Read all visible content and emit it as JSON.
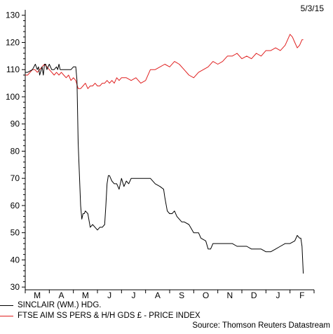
{
  "date_stamp": "5/3/15",
  "source": "Source: Thomson Reuters Datastream",
  "legend": [
    {
      "label": "SINCLAIR (WM.) HDG.",
      "color": "#000000"
    },
    {
      "label": "FTSE AIM SS PERS & H/H GDS £ - PRICE INDEX",
      "color": "#e02020"
    }
  ],
  "chart_data": {
    "type": "line",
    "title": "",
    "xlabel": "",
    "ylabel": "",
    "grid": false,
    "legend_position": "bottom-left",
    "x_ticks": [
      "M",
      "A",
      "M",
      "J",
      "J",
      "A",
      "S",
      "O",
      "N",
      "D",
      "J",
      "F"
    ],
    "y_ticks": [
      30,
      40,
      50,
      60,
      70,
      80,
      90,
      100,
      110,
      120,
      130
    ],
    "xlim": [
      0,
      12
    ],
    "ylim": [
      29,
      132
    ],
    "series": [
      {
        "name": "SINCLAIR (WM.) HDG.",
        "color": "#000000",
        "x": [
          0,
          0.1,
          0.3,
          0.42,
          0.5,
          0.55,
          0.6,
          0.7,
          0.75,
          0.8,
          0.85,
          0.9,
          1.0,
          1.1,
          1.2,
          1.3,
          1.35,
          1.4,
          1.45,
          1.5,
          1.55,
          1.6,
          1.8,
          1.9,
          2.0,
          2.05,
          2.1,
          2.15,
          2.2,
          2.3,
          2.35,
          2.4,
          2.45,
          2.5,
          2.6,
          2.7,
          2.8,
          2.9,
          3.0,
          3.1,
          3.2,
          3.3,
          3.35,
          3.4,
          3.45,
          3.5,
          3.55,
          3.6,
          3.7,
          3.8,
          3.9,
          4.0,
          4.1,
          4.2,
          4.3,
          4.4,
          4.5,
          4.6,
          4.8,
          5.0,
          5.2,
          5.4,
          5.6,
          5.75,
          5.8,
          5.9,
          6.0,
          6.1,
          6.2,
          6.3,
          6.4,
          6.5,
          6.6,
          6.8,
          7.0,
          7.2,
          7.3,
          7.5,
          7.6,
          7.7,
          7.8,
          8.0,
          8.2,
          8.4,
          8.6,
          8.8,
          9.0,
          9.2,
          9.4,
          9.6,
          9.8,
          10.0,
          10.2,
          10.4,
          10.6,
          10.8,
          11.0,
          11.2,
          11.3,
          11.4,
          11.45,
          11.5,
          11.55
        ],
        "values": [
          109,
          109,
          110,
          112,
          110,
          111,
          108,
          111,
          108,
          112,
          112,
          110,
          112,
          110,
          110,
          111,
          110,
          112,
          110,
          110,
          110,
          110,
          110,
          110,
          111,
          111,
          111,
          106,
          83,
          60,
          55,
          57,
          57,
          58,
          57,
          52,
          53,
          52,
          51,
          52,
          52,
          53,
          60,
          68,
          71,
          71,
          70,
          69,
          68,
          68,
          66,
          70,
          67,
          69,
          68,
          70,
          70,
          70,
          70,
          70,
          70,
          68,
          67,
          66,
          63,
          58,
          57,
          57,
          58,
          56,
          55,
          54,
          54,
          53,
          50,
          50,
          48,
          47,
          44,
          44,
          46,
          46,
          46,
          46,
          46,
          45,
          45,
          45,
          44,
          44,
          44,
          43,
          43,
          44,
          45,
          46,
          46,
          47,
          49,
          48,
          48,
          45,
          35
        ]
      },
      {
        "name": "FTSE AIM SS PERS & H/H GDS £ - PRICE INDEX",
        "color": "#e02020",
        "x": [
          0,
          0.1,
          0.2,
          0.3,
          0.4,
          0.5,
          0.6,
          0.7,
          0.8,
          0.9,
          1.0,
          1.1,
          1.2,
          1.3,
          1.4,
          1.5,
          1.6,
          1.7,
          1.8,
          1.9,
          2.0,
          2.1,
          2.2,
          2.3,
          2.4,
          2.5,
          2.6,
          2.7,
          2.8,
          2.9,
          3.0,
          3.1,
          3.2,
          3.3,
          3.4,
          3.5,
          3.6,
          3.7,
          3.8,
          3.9,
          4.0,
          4.2,
          4.4,
          4.6,
          4.8,
          5.0,
          5.2,
          5.4,
          5.6,
          5.8,
          6.0,
          6.2,
          6.4,
          6.6,
          6.8,
          7.0,
          7.2,
          7.4,
          7.6,
          7.8,
          8.0,
          8.2,
          8.4,
          8.6,
          8.8,
          9.0,
          9.2,
          9.4,
          9.6,
          9.8,
          10.0,
          10.2,
          10.4,
          10.6,
          10.8,
          11.0,
          11.1,
          11.2,
          11.3,
          11.4,
          11.5,
          11.55
        ],
        "values": [
          108,
          108,
          109,
          110,
          110,
          109,
          110,
          111,
          112,
          111,
          110,
          109,
          108,
          109,
          108,
          109,
          108,
          107,
          108,
          106,
          107,
          106,
          103,
          103,
          104,
          105,
          103,
          104,
          104,
          105,
          104,
          104,
          105,
          105,
          106,
          105,
          106,
          105,
          107,
          106,
          107,
          107,
          106,
          107,
          105,
          106,
          110,
          110,
          111,
          112,
          111,
          113,
          112,
          110,
          108,
          107,
          109,
          110,
          111,
          113,
          112,
          113,
          115,
          115,
          116,
          114,
          115,
          114,
          116,
          115,
          117,
          117,
          118,
          117,
          119,
          123,
          122,
          120,
          118,
          119,
          121,
          121
        ]
      }
    ]
  }
}
